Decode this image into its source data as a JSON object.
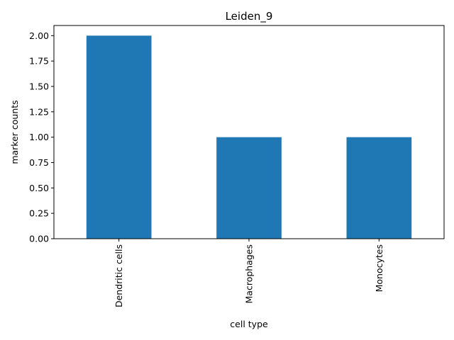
{
  "chart_data": {
    "type": "bar",
    "title": "Leiden_9",
    "xlabel": "cell type",
    "ylabel": "marker counts",
    "categories": [
      "Dendritic cells",
      "Macrophages",
      "Monocytes"
    ],
    "values": [
      2,
      1,
      1
    ],
    "ylim": [
      0,
      2.1
    ],
    "yticks": [
      "0.00",
      "0.25",
      "0.50",
      "0.75",
      "1.00",
      "1.25",
      "1.50",
      "1.75",
      "2.00"
    ],
    "grid": false,
    "legend": "none",
    "bar_color": "#1f77b4",
    "xtick_rotation": "vertical"
  }
}
